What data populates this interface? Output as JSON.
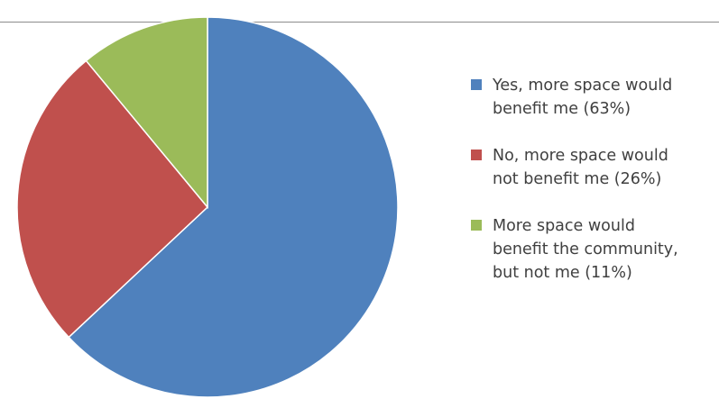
{
  "chart_data": {
    "type": "pie",
    "title": "",
    "legend_placement": "right",
    "series": [
      {
        "values": [
          63,
          26,
          11
        ],
        "labels": [
          "Yes, more space would benefit me (63%)",
          "No, more space would not benefit me (26%)",
          "More space would benefit the community, but not me (11%)"
        ],
        "colors": [
          "#4f81bd",
          "#c0504d",
          "#9bbb59"
        ]
      }
    ],
    "legend": [
      {
        "lines": [
          "Yes, more space would",
          "benefit me (63%)"
        ]
      },
      {
        "lines": [
          "No, more space would",
          "not benefit me (26%)"
        ]
      },
      {
        "lines": [
          "More space would",
          "benefit the community,",
          "but not me (11%)"
        ]
      }
    ]
  }
}
